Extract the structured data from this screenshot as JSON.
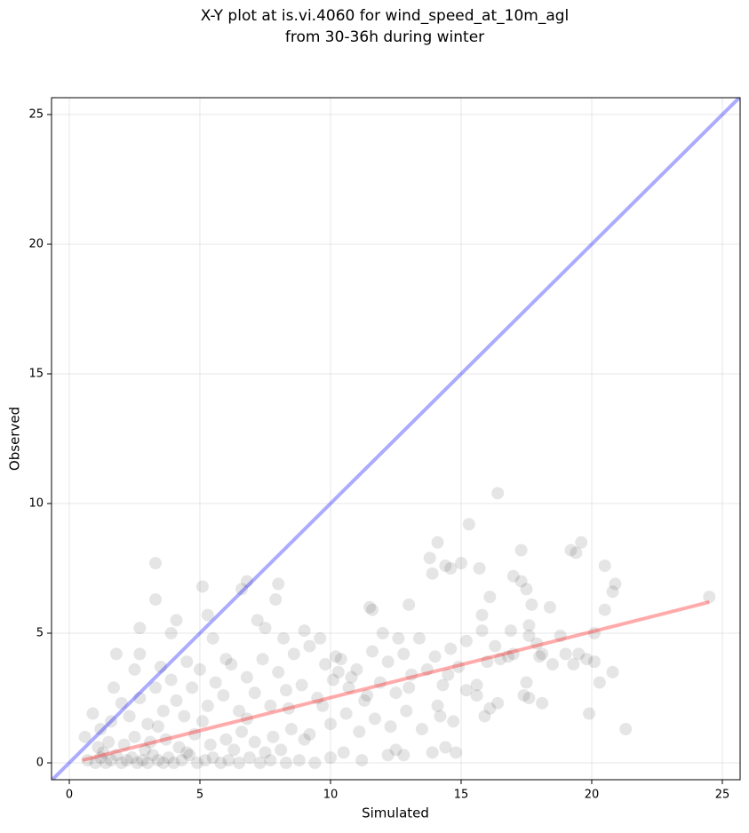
{
  "chart_data": {
    "type": "scatter",
    "title": [
      "X-Y plot at is.vi.4060 for wind_speed_at_10m_agl",
      "from 30-36h during winter"
    ],
    "x_label": "Simulated",
    "y_label": "Observed",
    "xlim": [
      -0.68,
      25.68
    ],
    "ylim": [
      -0.65,
      25.65
    ],
    "xticks": [
      0,
      5,
      10,
      15,
      20,
      25
    ],
    "yticks": [
      0,
      5,
      10,
      15,
      20,
      25
    ],
    "grid": true,
    "color": "#000000",
    "x": [
      3.3,
      3.3,
      5.1,
      6.6,
      6.8,
      7.2,
      8.0,
      7.9,
      5.3,
      4.1,
      3.9,
      2.7,
      2.7,
      1.8,
      11.5,
      11.6,
      13.0,
      14.1,
      13.8,
      13.9,
      14.4,
      14.6,
      15.0,
      15.3,
      16.4,
      15.7,
      16.1,
      17.0,
      17.3,
      17.3,
      17.5,
      17.7,
      18.4,
      19.2,
      19.4,
      19.6,
      20.5,
      20.8,
      20.9,
      20.5,
      24.5,
      21.3,
      19.9,
      20.3,
      20.8,
      20.1,
      19.8,
      19.5,
      19.3,
      18.8,
      18.5,
      18.1,
      18.1,
      17.6,
      17.4,
      17.5,
      17.6,
      17.6,
      16.8,
      16.4,
      16.1,
      15.9,
      15.6,
      15.6,
      15.2,
      15.8,
      15.8,
      16.9,
      16.5,
      14.2,
      14.7,
      14.8,
      13.9,
      14.4,
      12.8,
      12.2,
      12.5,
      10.0,
      10.5,
      11.2,
      0.7,
      1.0,
      1.2,
      1.4,
      1.6,
      1.8,
      2.0,
      2.2,
      2.4,
      2.6,
      2.8,
      3.0,
      3.2,
      3.4,
      3.6,
      3.8,
      4.0,
      4.3,
      4.6,
      4.9,
      5.2,
      5.5,
      5.8,
      6.1,
      6.5,
      6.9,
      7.3,
      7.7,
      8.3,
      8.8,
      9.4,
      1.1,
      1.5,
      2.1,
      2.5,
      3.1,
      3.7,
      4.2,
      4.8,
      5.4,
      6.0,
      6.6,
      7.1,
      7.8,
      8.5,
      9.2,
      0.9,
      1.2,
      1.6,
      2.0,
      2.3,
      2.7,
      3.0,
      3.3,
      3.6,
      3.9,
      4.1,
      4.4,
      4.7,
      5.0,
      5.3,
      5.6,
      5.9,
      6.2,
      6.5,
      6.8,
      7.1,
      7.4,
      7.7,
      8.0,
      8.3,
      8.6,
      8.9,
      9.2,
      9.5,
      9.8,
      10.1,
      10.4,
      10.7,
      11.0,
      11.3,
      11.6,
      11.9,
      12.2,
      12.5,
      12.8,
      13.1,
      13.4,
      13.7,
      14.0,
      14.3,
      14.6,
      14.9,
      15.2,
      10.0,
      10.6,
      11.1,
      11.7,
      12.3,
      12.9,
      13.5,
      14.1,
      9.6,
      10.2,
      10.8,
      12.0,
      12.6,
      9.0,
      8.2,
      7.5,
      6.0,
      5.5,
      4.5,
      3.5,
      2.5,
      1.7,
      0.6,
      1.3,
      2.9,
      4.5,
      6.3,
      7.5,
      3.4,
      5.1,
      6.8,
      8.4,
      9.7,
      11.4,
      13.0,
      14.5,
      16.0,
      17.0,
      18.0,
      16.3,
      17.9,
      19.0,
      20.1,
      9.0,
      8.1,
      10.3
    ],
    "values": [
      7.7,
      6.3,
      6.8,
      6.7,
      7.0,
      5.5,
      6.9,
      6.3,
      5.7,
      5.5,
      5.0,
      5.2,
      4.2,
      4.2,
      6.0,
      5.9,
      6.1,
      8.5,
      7.9,
      7.3,
      7.6,
      7.5,
      7.7,
      9.2,
      10.4,
      7.5,
      6.4,
      7.2,
      8.2,
      7.0,
      6.7,
      6.1,
      6.0,
      8.2,
      8.1,
      8.5,
      7.6,
      6.6,
      6.9,
      5.9,
      6.4,
      1.3,
      1.9,
      3.1,
      3.5,
      3.9,
      4.0,
      4.2,
      3.8,
      4.9,
      3.8,
      4.2,
      2.3,
      2.5,
      2.6,
      3.1,
      4.9,
      5.3,
      4.1,
      2.3,
      2.1,
      1.8,
      2.6,
      3.0,
      2.8,
      5.7,
      5.1,
      5.1,
      4.0,
      1.8,
      1.6,
      0.4,
      0.4,
      0.6,
      0.3,
      0.3,
      0.5,
      0.2,
      0.4,
      0.1,
      0.1,
      0.0,
      0.2,
      0.0,
      0.1,
      0.3,
      0.0,
      0.1,
      0.2,
      0.0,
      0.1,
      0.0,
      0.3,
      0.1,
      0.0,
      0.2,
      0.0,
      0.1,
      0.3,
      0.0,
      0.1,
      0.2,
      0.0,
      0.1,
      0.0,
      0.2,
      0.0,
      0.1,
      0.0,
      0.1,
      0.0,
      0.6,
      0.8,
      0.7,
      1.0,
      0.8,
      0.9,
      0.6,
      1.1,
      0.7,
      0.9,
      1.2,
      0.8,
      1.0,
      1.3,
      1.1,
      1.9,
      1.3,
      1.6,
      2.3,
      1.8,
      2.5,
      1.5,
      2.9,
      2.0,
      3.2,
      2.4,
      1.8,
      2.9,
      3.6,
      2.2,
      3.1,
      2.6,
      3.8,
      2.0,
      3.3,
      2.7,
      4.0,
      2.2,
      3.5,
      2.8,
      4.2,
      3.0,
      4.5,
      2.5,
      3.8,
      3.2,
      4.0,
      2.9,
      3.6,
      2.4,
      4.3,
      3.1,
      3.9,
      2.7,
      4.2,
      3.4,
      4.8,
      3.6,
      4.1,
      3.0,
      4.4,
      3.7,
      4.7,
      1.5,
      1.9,
      1.2,
      1.7,
      1.4,
      2.0,
      1.3,
      2.2,
      4.8,
      4.1,
      3.3,
      5.0,
      4.8,
      5.1,
      4.8,
      5.2,
      4.0,
      4.8,
      3.9,
      3.7,
      3.6,
      2.9,
      1.0,
      0.4,
      0.5,
      0.4,
      0.5,
      0.4,
      1.4,
      1.6,
      1.7,
      2.1,
      2.2,
      2.6,
      2.9,
      3.4,
      3.9,
      4.2,
      4.1,
      4.5,
      4.6,
      4.2,
      5.0,
      0.9,
      0.5,
      3.5
    ],
    "lines": [
      {
        "color": "#0000ff",
        "x": [
          -0.68,
          25.68
        ],
        "values": [
          -0.68,
          25.68
        ]
      },
      {
        "color": "#ff0000",
        "x": [
          0.5,
          24.5
        ],
        "values": [
          0.1,
          6.2
        ]
      }
    ]
  }
}
